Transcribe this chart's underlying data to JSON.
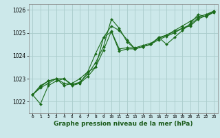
{
  "background_color": "#cce8ea",
  "grid_color": "#aacccc",
  "line_color": "#1a6b1a",
  "marker_color": "#1a6b1a",
  "title": "Graphe pression niveau de la mer (hPa)",
  "xlim": [
    -0.5,
    23.5
  ],
  "ylim": [
    1021.5,
    1026.25
  ],
  "yticks": [
    1022,
    1023,
    1024,
    1025,
    1026
  ],
  "xticks": [
    0,
    1,
    2,
    3,
    4,
    5,
    6,
    7,
    8,
    9,
    10,
    11,
    12,
    13,
    14,
    15,
    16,
    17,
    18,
    19,
    20,
    21,
    22,
    23
  ],
  "series": [
    [
      1022.3,
      1021.9,
      1022.7,
      1022.9,
      1023.0,
      1022.7,
      1022.8,
      1023.3,
      1023.5,
      1024.8,
      1025.3,
      1025.1,
      1024.7,
      1024.3,
      1024.4,
      1024.5,
      1024.8,
      1024.5,
      1024.8,
      1025.1,
      1025.4,
      1025.8,
      1025.7,
      1025.9
    ],
    [
      1022.3,
      1022.7,
      1022.9,
      1023.0,
      1022.7,
      1022.8,
      1023.0,
      1023.3,
      1024.1,
      1024.8,
      1025.05,
      1024.2,
      1024.3,
      1024.3,
      1024.4,
      1024.5,
      1024.7,
      1024.85,
      1025.0,
      1025.2,
      1025.3,
      1025.6,
      1025.75,
      1025.9
    ],
    [
      1022.3,
      1022.65,
      1022.9,
      1023.0,
      1022.8,
      1022.75,
      1022.85,
      1023.2,
      1023.7,
      1024.4,
      1025.6,
      1025.2,
      1024.6,
      1024.3,
      1024.4,
      1024.5,
      1024.8,
      1024.9,
      1025.1,
      1025.3,
      1025.5,
      1025.7,
      1025.8,
      1025.95
    ],
    [
      1022.3,
      1022.6,
      1022.8,
      1023.0,
      1023.0,
      1022.75,
      1022.8,
      1023.1,
      1023.5,
      1024.25,
      1025.07,
      1024.3,
      1024.35,
      1024.35,
      1024.45,
      1024.55,
      1024.75,
      1024.9,
      1025.05,
      1025.2,
      1025.35,
      1025.65,
      1025.75,
      1025.95
    ]
  ],
  "ylabel_fontsize": 5.5,
  "xlabel_fontsize": 6.5,
  "tick_fontsize": 4.5
}
